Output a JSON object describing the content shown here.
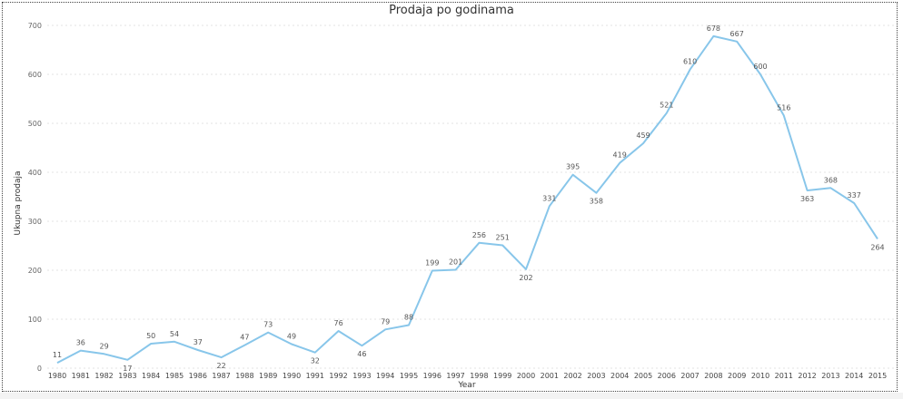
{
  "chart_data": {
    "type": "line",
    "title": "Prodaja po godinama",
    "xlabel": "Year",
    "ylabel": "Ukupna prodaja",
    "ylim": [
      0,
      700
    ],
    "yticks": [
      "0",
      "100",
      "200",
      "300",
      "400",
      "500",
      "600",
      "700"
    ],
    "grid": true,
    "series_color": "#88c6ea",
    "x": [
      "1980",
      "1981",
      "1982",
      "1983",
      "1984",
      "1985",
      "1986",
      "1987",
      "1988",
      "1989",
      "1990",
      "1991",
      "1992",
      "1993",
      "1994",
      "1995",
      "1996",
      "1997",
      "1998",
      "1999",
      "2000",
      "2001",
      "2002",
      "2003",
      "2004",
      "2005",
      "2006",
      "2007",
      "2008",
      "2009",
      "2010",
      "2011",
      "2012",
      "2013",
      "2014",
      "2015"
    ],
    "values": [
      11,
      36,
      29,
      17,
      50,
      54,
      37,
      22,
      47,
      73,
      49,
      32,
      76,
      46,
      79,
      88,
      199,
      201,
      256,
      251,
      202,
      331,
      395,
      358,
      419,
      459,
      521,
      610,
      678,
      667,
      600,
      516,
      363,
      368,
      337,
      264
    ]
  }
}
